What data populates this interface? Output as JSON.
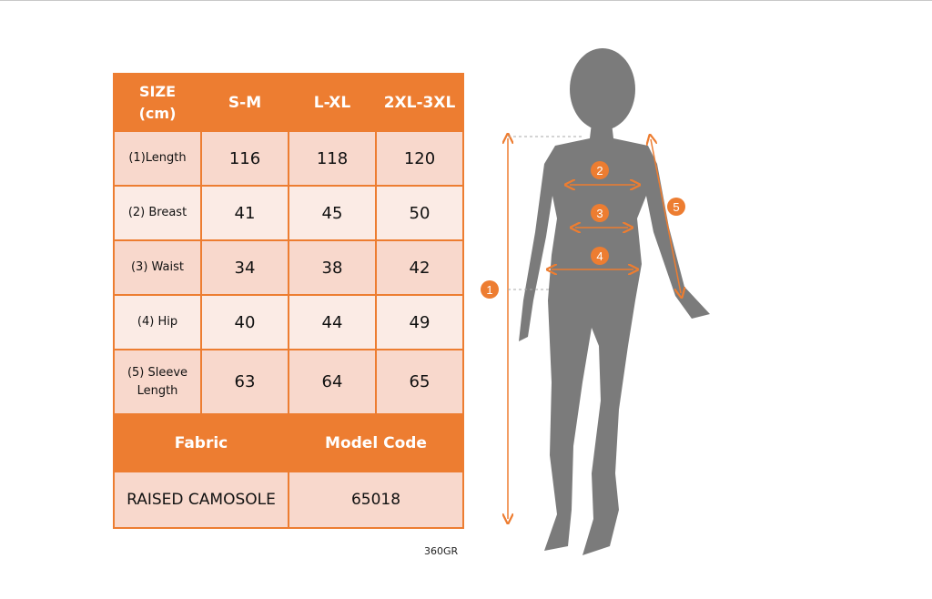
{
  "size_table": {
    "header": [
      "SIZE (cm)",
      "S-M",
      "L-XL",
      "2XL-3XL"
    ],
    "header_line1": "SIZE",
    "header_line2": "(cm)",
    "rows": [
      {
        "label": "(1)Length",
        "values": [
          "116",
          "118",
          "120"
        ]
      },
      {
        "label": "(2) Breast",
        "values": [
          "41",
          "45",
          "50"
        ]
      },
      {
        "label": "(3) Waist",
        "values": [
          "34",
          "38",
          "42"
        ]
      },
      {
        "label": "(4) Hip",
        "values": [
          "40",
          "44",
          "49"
        ]
      },
      {
        "label": "(5) Sleeve Length",
        "label_line1": "(5) Sleeve",
        "label_line2": "Length",
        "values": [
          "63",
          "64",
          "65"
        ]
      }
    ]
  },
  "fabric_table": {
    "fabric_header": "Fabric",
    "model_code_header": "Model Code",
    "fabric_value": "RAISED CAMOSOLE",
    "model_code_value": "65018"
  },
  "footer_code": "360GR",
  "figure": {
    "markers": [
      "1",
      "2",
      "3",
      "4",
      "5"
    ]
  },
  "colors": {
    "accent": "#ed7d31",
    "row_dark": "#f8d8cc",
    "row_light": "#fbebe5",
    "silhouette": "#7b7b7b"
  }
}
